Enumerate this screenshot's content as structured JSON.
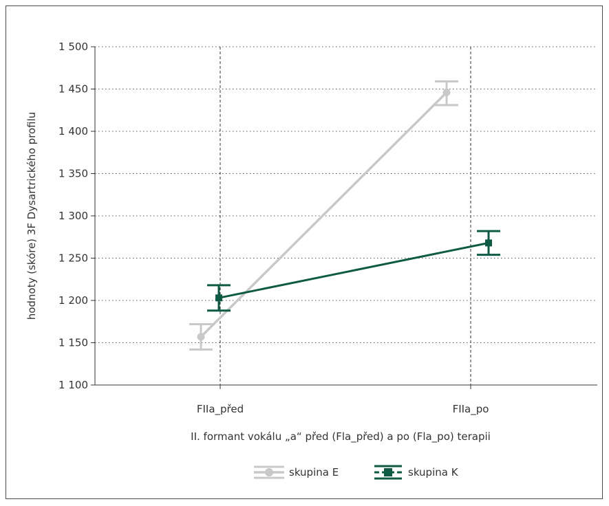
{
  "chart_data": {
    "type": "line",
    "title": "",
    "xlabel": "II. formant vokálu „a“ před (Fla_před) a po (Fla_po) terapii",
    "ylabel": "hodnoty (skóre) 3F Dysartrického profilu",
    "categories": [
      "FIIa_před",
      "FIIa_po"
    ],
    "ylim": [
      1100,
      1500
    ],
    "yticks": [
      1100,
      1150,
      1200,
      1250,
      1300,
      1350,
      1400,
      1450,
      1500
    ],
    "ytick_labels": [
      "1 100",
      "1 150",
      "1 200",
      "1 250",
      "1 300",
      "1 350",
      "1 400",
      "1 450",
      "1 500"
    ],
    "grid": "horizontal dotted, vertical dashed at categories",
    "legend_position": "bottom-center",
    "series": [
      {
        "name": "skupina E",
        "color": "#c8c8c8",
        "marker": "circle",
        "values": [
          1157,
          1446
        ],
        "error_low": [
          1142,
          1431
        ],
        "error_high": [
          1172,
          1459
        ]
      },
      {
        "name": "skupina K",
        "color": "#0e5a45",
        "marker": "square",
        "values": [
          1203,
          1268
        ],
        "error_low": [
          1188,
          1254
        ],
        "error_high": [
          1218,
          1282
        ]
      }
    ]
  }
}
